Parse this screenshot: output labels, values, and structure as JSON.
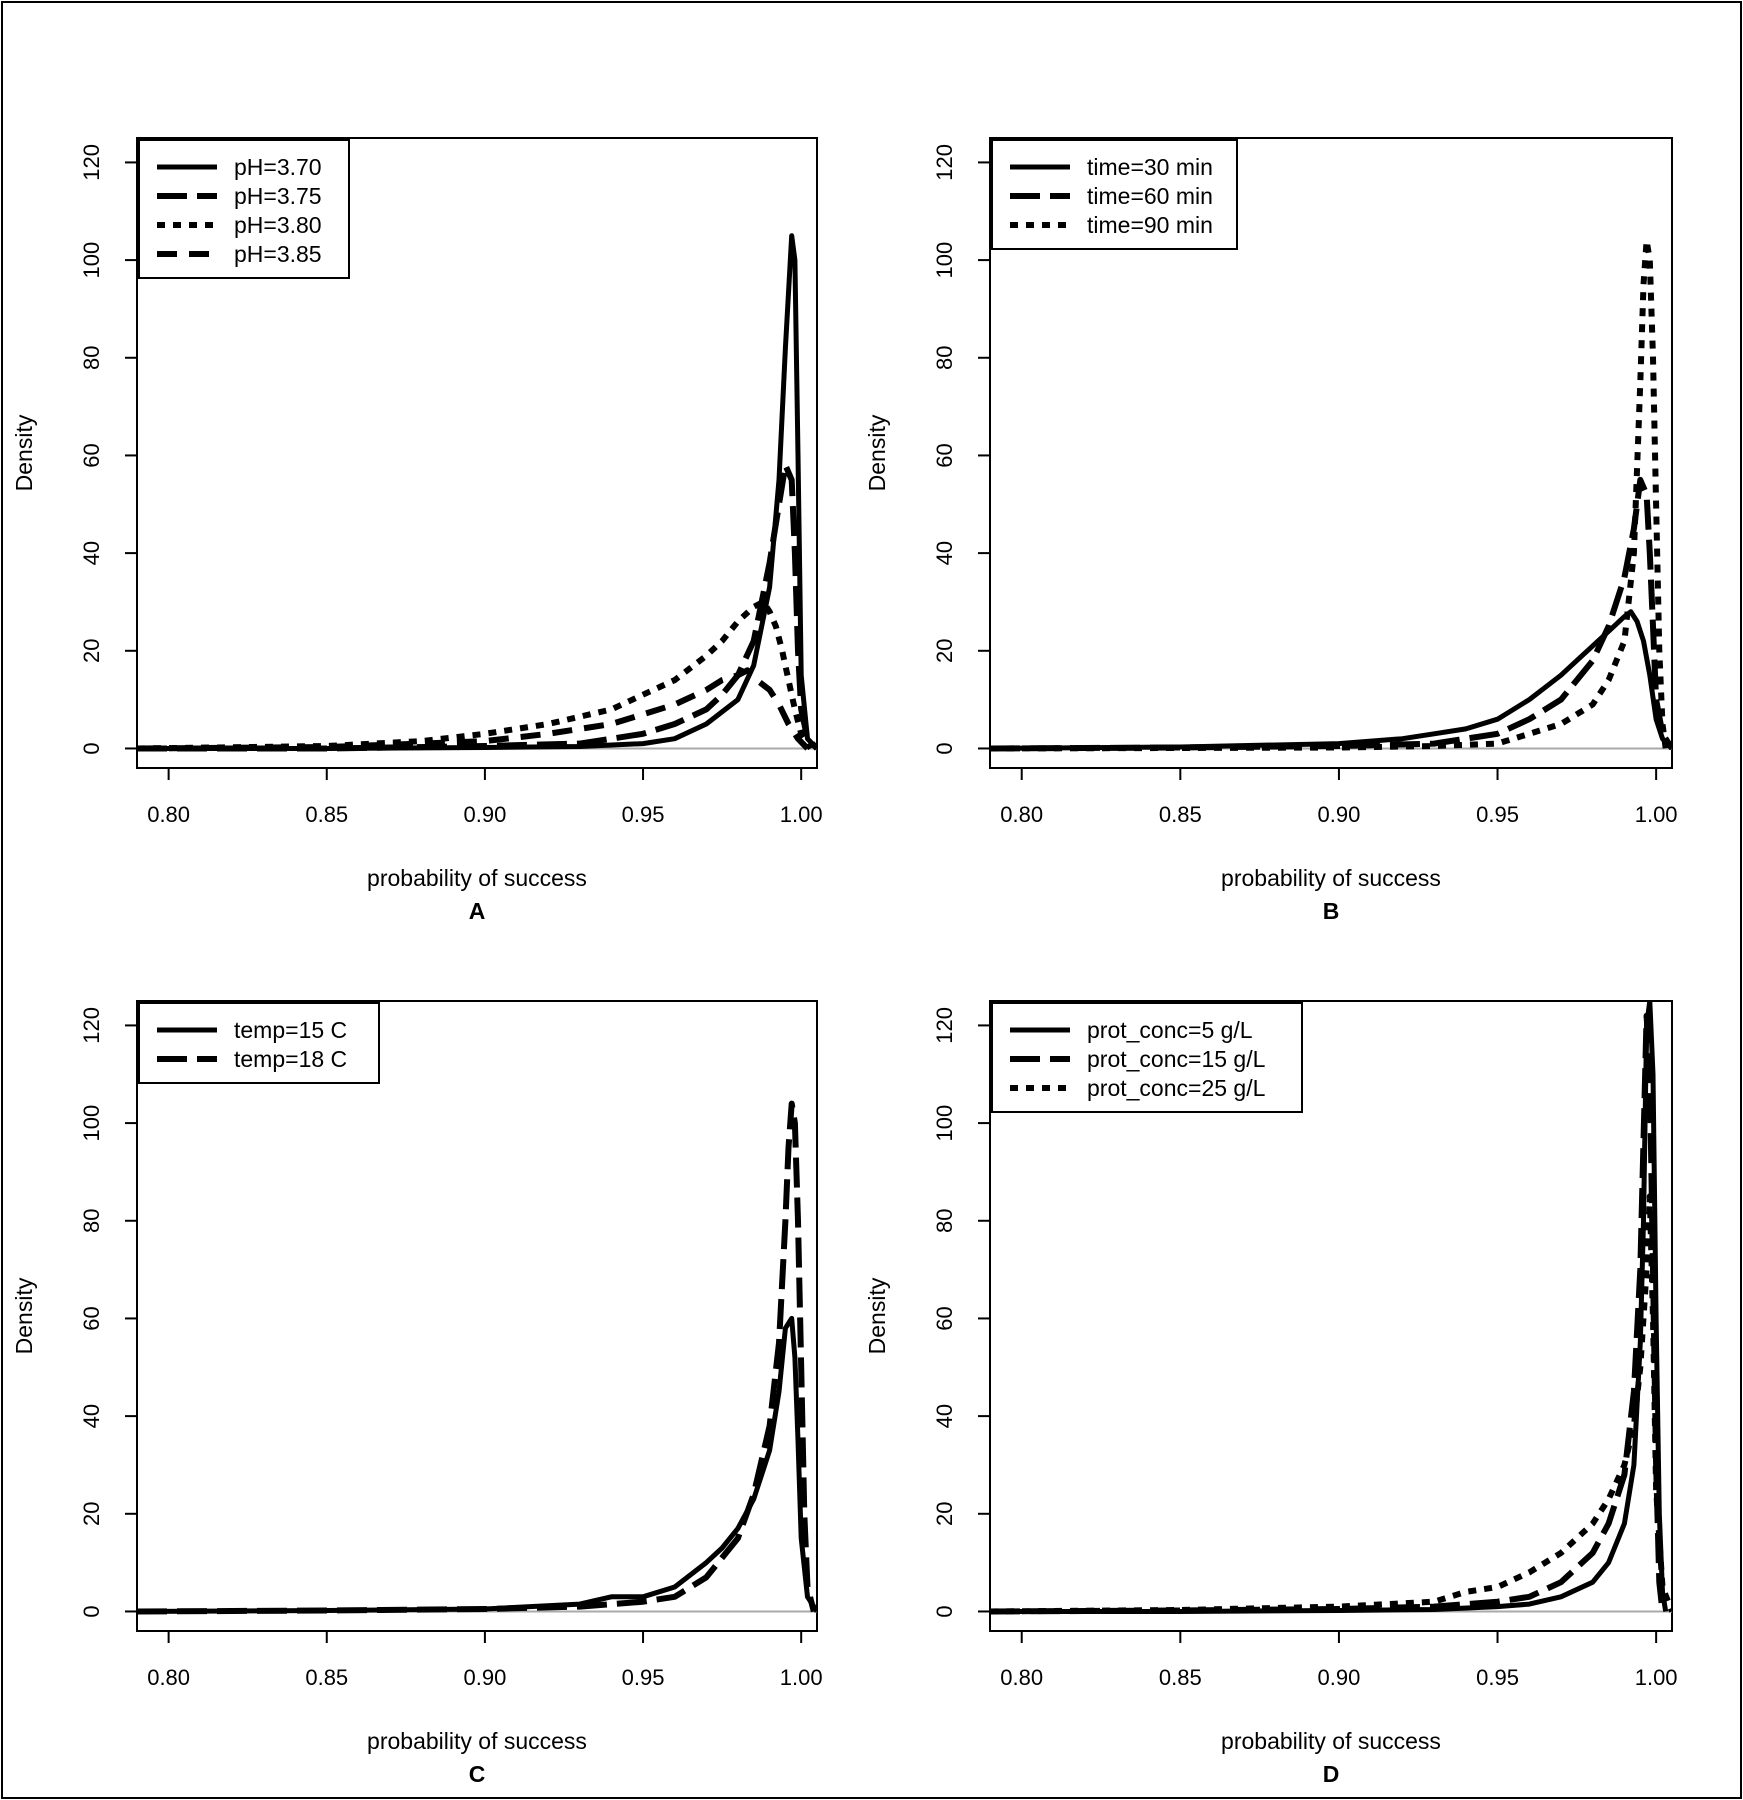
{
  "chart_data": [
    {
      "panel": "A",
      "type": "line",
      "title": "",
      "xlabel": "probability of success",
      "ylabel": "Density",
      "xlim": [
        0.79,
        1.005
      ],
      "ylim": [
        -4,
        125
      ],
      "xticks": [
        "0.80",
        "0.85",
        "0.90",
        "0.95",
        "1.00"
      ],
      "yticks": [
        "0",
        "20",
        "40",
        "60",
        "80",
        "100",
        "120"
      ],
      "legend_position": "top-left",
      "zero_line": true,
      "series": [
        {
          "name": "pH=3.70",
          "dash": "solid",
          "x": [
            0.79,
            0.85,
            0.9,
            0.93,
            0.95,
            0.96,
            0.97,
            0.98,
            0.985,
            0.99,
            0.993,
            0.995,
            0.997,
            0.998,
            0.999,
            1.0,
            1.002,
            1.005
          ],
          "y": [
            0,
            0,
            0.2,
            0.4,
            1,
            2,
            5,
            10,
            17,
            33,
            55,
            82,
            105,
            100,
            60,
            15,
            2,
            0
          ]
        },
        {
          "name": "pH=3.75",
          "dash": "longdash",
          "x": [
            0.79,
            0.85,
            0.9,
            0.93,
            0.95,
            0.96,
            0.97,
            0.975,
            0.98,
            0.985,
            0.99,
            0.993,
            0.995,
            0.997,
            0.998,
            0.999,
            1.0,
            1.002,
            1.005
          ],
          "y": [
            0,
            0,
            0.5,
            1,
            3,
            5,
            8,
            11,
            15,
            22,
            38,
            50,
            58,
            55,
            40,
            20,
            8,
            2,
            0
          ]
        },
        {
          "name": "pH=3.80",
          "dash": "dotted",
          "x": [
            0.79,
            0.85,
            0.88,
            0.9,
            0.92,
            0.94,
            0.95,
            0.96,
            0.97,
            0.975,
            0.98,
            0.985,
            0.988,
            0.99,
            0.992,
            0.994,
            0.996,
            0.998,
            1.0,
            1.003
          ],
          "y": [
            0,
            0.5,
            1.5,
            3,
            5,
            8,
            11,
            14,
            19,
            22,
            26,
            29,
            30,
            28,
            25,
            20,
            14,
            8,
            3,
            0
          ]
        },
        {
          "name": "pH=3.85",
          "dash": "dashed",
          "x": [
            0.79,
            0.85,
            0.88,
            0.9,
            0.92,
            0.94,
            0.95,
            0.96,
            0.97,
            0.975,
            0.98,
            0.983,
            0.986,
            0.99,
            0.993,
            0.996,
            0.999,
            1.002
          ],
          "y": [
            0,
            0.3,
            1,
            1.5,
            3,
            5,
            7,
            9,
            12,
            14,
            15,
            16,
            14,
            12,
            9,
            5,
            2,
            0
          ]
        }
      ]
    },
    {
      "panel": "B",
      "type": "line",
      "title": "",
      "xlabel": "probability of success",
      "ylabel": "Density",
      "xlim": [
        0.79,
        1.005
      ],
      "ylim": [
        -4,
        125
      ],
      "xticks": [
        "0.80",
        "0.85",
        "0.90",
        "0.95",
        "1.00"
      ],
      "yticks": [
        "0",
        "20",
        "40",
        "60",
        "80",
        "100",
        "120"
      ],
      "legend_position": "top-left",
      "zero_line": true,
      "series": [
        {
          "name": "time=30 min",
          "dash": "solid",
          "x": [
            0.79,
            0.85,
            0.9,
            0.92,
            0.93,
            0.94,
            0.95,
            0.96,
            0.97,
            0.975,
            0.98,
            0.985,
            0.99,
            0.992,
            0.994,
            0.996,
            0.998,
            1.0,
            1.002,
            1.005
          ],
          "y": [
            0,
            0.3,
            1,
            2,
            3,
            4,
            6,
            10,
            15,
            18,
            21,
            24,
            27,
            28,
            26,
            22,
            15,
            6,
            2,
            0
          ]
        },
        {
          "name": "time=60 min",
          "dash": "longdash",
          "x": [
            0.79,
            0.85,
            0.9,
            0.93,
            0.95,
            0.96,
            0.97,
            0.98,
            0.985,
            0.99,
            0.993,
            0.995,
            0.997,
            0.998,
            0.999,
            1.0,
            1.002,
            1.005
          ],
          "y": [
            0,
            0.2,
            0.5,
            1,
            3,
            6,
            10,
            18,
            25,
            35,
            45,
            55,
            52,
            40,
            25,
            10,
            3,
            0
          ]
        },
        {
          "name": "time=90 min",
          "dash": "dotted",
          "x": [
            0.79,
            0.85,
            0.9,
            0.93,
            0.95,
            0.96,
            0.97,
            0.98,
            0.985,
            0.99,
            0.993,
            0.995,
            0.996,
            0.997,
            0.998,
            0.999,
            1.0,
            1.001,
            1.002,
            1.003
          ],
          "y": [
            0,
            0.1,
            0.2,
            0.5,
            1,
            3,
            5,
            9,
            14,
            22,
            40,
            75,
            95,
            104,
            100,
            80,
            50,
            20,
            5,
            0
          ]
        }
      ]
    },
    {
      "panel": "C",
      "type": "line",
      "title": "",
      "xlabel": "probability of success",
      "ylabel": "Density",
      "xlim": [
        0.79,
        1.005
      ],
      "ylim": [
        -4,
        125
      ],
      "xticks": [
        "0.80",
        "0.85",
        "0.90",
        "0.95",
        "1.00"
      ],
      "yticks": [
        "0",
        "20",
        "40",
        "60",
        "80",
        "100",
        "120"
      ],
      "legend_position": "top-left",
      "zero_line": true,
      "series": [
        {
          "name": "temp=15 C",
          "dash": "solid",
          "x": [
            0.79,
            0.85,
            0.9,
            0.93,
            0.94,
            0.95,
            0.96,
            0.97,
            0.975,
            0.98,
            0.985,
            0.99,
            0.993,
            0.995,
            0.997,
            0.998,
            0.999,
            1.0,
            1.002,
            1.005
          ],
          "y": [
            0,
            0.2,
            0.5,
            1.5,
            3,
            3,
            5,
            10,
            13,
            17,
            23,
            33,
            45,
            58,
            60,
            52,
            35,
            15,
            3,
            0
          ]
        },
        {
          "name": "temp=18 C",
          "dash": "longdash",
          "x": [
            0.79,
            0.85,
            0.9,
            0.93,
            0.95,
            0.96,
            0.97,
            0.98,
            0.985,
            0.99,
            0.993,
            0.995,
            0.996,
            0.997,
            0.998,
            0.999,
            1.0,
            1.001,
            1.002,
            1.004
          ],
          "y": [
            0,
            0.2,
            0.5,
            1,
            2,
            3,
            7,
            15,
            24,
            38,
            55,
            80,
            95,
            104,
            100,
            80,
            50,
            20,
            5,
            0
          ]
        }
      ]
    },
    {
      "panel": "D",
      "type": "line",
      "title": "",
      "xlabel": "probability of success",
      "ylabel": "Density",
      "xlim": [
        0.79,
        1.005
      ],
      "ylim": [
        -4,
        125
      ],
      "xticks": [
        "0.80",
        "0.85",
        "0.90",
        "0.95",
        "1.00"
      ],
      "yticks": [
        "0",
        "20",
        "40",
        "60",
        "80",
        "100",
        "120"
      ],
      "legend_position": "top-left",
      "zero_line": true,
      "series": [
        {
          "name": "prot_conc=5 g/L",
          "dash": "solid",
          "x": [
            0.79,
            0.85,
            0.9,
            0.93,
            0.95,
            0.96,
            0.97,
            0.98,
            0.985,
            0.99,
            0.993,
            0.995,
            0.996,
            0.997,
            0.998,
            0.999,
            1.0,
            1.001,
            1.002,
            1.003
          ],
          "y": [
            0,
            0,
            0.2,
            0.4,
            1,
            1.5,
            3,
            6,
            10,
            18,
            30,
            55,
            80,
            120,
            125,
            110,
            60,
            20,
            4,
            0
          ]
        },
        {
          "name": "prot_conc=15 g/L",
          "dash": "longdash",
          "x": [
            0.79,
            0.85,
            0.9,
            0.93,
            0.95,
            0.96,
            0.97,
            0.98,
            0.985,
            0.99,
            0.993,
            0.995,
            0.997,
            0.998,
            0.999,
            1.0,
            1.001,
            1.002
          ],
          "y": [
            0,
            0.2,
            0.5,
            1,
            2,
            3,
            6,
            12,
            18,
            28,
            45,
            70,
            122,
            110,
            70,
            30,
            6,
            0
          ]
        },
        {
          "name": "prot_conc=25 g/L",
          "dash": "dotted",
          "x": [
            0.79,
            0.85,
            0.9,
            0.93,
            0.94,
            0.95,
            0.96,
            0.97,
            0.98,
            0.985,
            0.99,
            0.993,
            0.995,
            0.997,
            0.998,
            0.999,
            1.0,
            1.002,
            1.005
          ],
          "y": [
            0,
            0.3,
            1,
            2,
            4,
            5,
            8,
            12,
            18,
            23,
            30,
            38,
            50,
            70,
            85,
            60,
            25,
            5,
            0
          ]
        }
      ]
    }
  ]
}
